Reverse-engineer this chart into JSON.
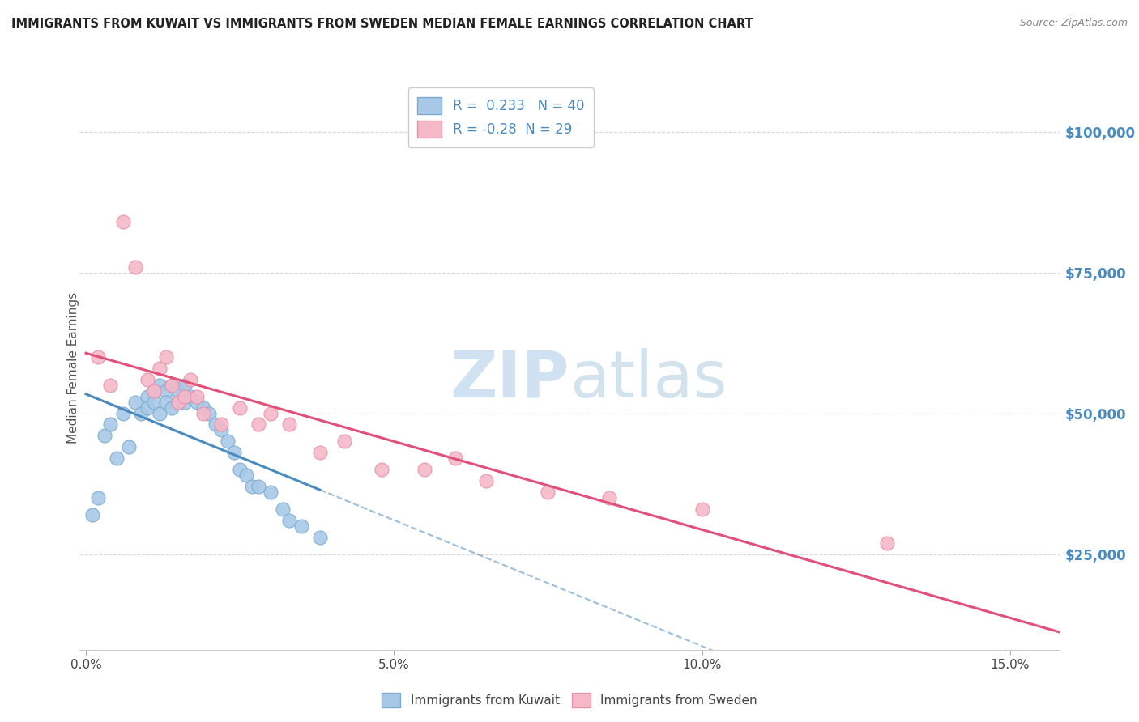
{
  "title": "IMMIGRANTS FROM KUWAIT VS IMMIGRANTS FROM SWEDEN MEDIAN FEMALE EARNINGS CORRELATION CHART",
  "source": "Source: ZipAtlas.com",
  "ylabel": "Median Female Earnings",
  "xlabel_ticks": [
    "0.0%",
    "5.0%",
    "10.0%",
    "15.0%"
  ],
  "xlabel_vals": [
    0.0,
    0.05,
    0.1,
    0.15
  ],
  "ytick_labels": [
    "$25,000",
    "$50,000",
    "$75,000",
    "$100,000"
  ],
  "ytick_vals": [
    25000,
    50000,
    75000,
    100000
  ],
  "xlim": [
    -0.001,
    0.158
  ],
  "ylim": [
    8000,
    108000
  ],
  "kuwait_color": "#a8c8e8",
  "kuwait_edge_color": "#7aaccc",
  "sweden_color": "#f5b8c8",
  "sweden_edge_color": "#e890a8",
  "kuwait_line_color": "#4a8bbf",
  "sweden_line_color": "#e0507a",
  "kuwait_R": 0.233,
  "kuwait_N": 40,
  "sweden_R": -0.28,
  "sweden_N": 29,
  "grid_color": "#d8d8d8",
  "background_color": "#ffffff",
  "kuwait_x": [
    0.001,
    0.002,
    0.003,
    0.004,
    0.005,
    0.006,
    0.007,
    0.008,
    0.009,
    0.01,
    0.01,
    0.011,
    0.011,
    0.012,
    0.012,
    0.013,
    0.013,
    0.014,
    0.014,
    0.015,
    0.015,
    0.016,
    0.016,
    0.017,
    0.018,
    0.019,
    0.02,
    0.021,
    0.022,
    0.023,
    0.024,
    0.025,
    0.026,
    0.027,
    0.028,
    0.03,
    0.032,
    0.033,
    0.035,
    0.038
  ],
  "kuwait_y": [
    32000,
    35000,
    46000,
    48000,
    42000,
    50000,
    44000,
    52000,
    50000,
    53000,
    51000,
    54000,
    52000,
    55000,
    50000,
    54000,
    52000,
    55000,
    51000,
    54000,
    52000,
    55000,
    52000,
    53000,
    52000,
    51000,
    50000,
    48000,
    47000,
    45000,
    43000,
    40000,
    39000,
    37000,
    37000,
    36000,
    33000,
    31000,
    30000,
    28000
  ],
  "sweden_x": [
    0.002,
    0.004,
    0.006,
    0.008,
    0.01,
    0.011,
    0.012,
    0.013,
    0.014,
    0.015,
    0.016,
    0.017,
    0.018,
    0.019,
    0.022,
    0.025,
    0.028,
    0.03,
    0.033,
    0.038,
    0.042,
    0.048,
    0.055,
    0.06,
    0.065,
    0.075,
    0.085,
    0.1,
    0.13
  ],
  "sweden_y": [
    60000,
    55000,
    84000,
    76000,
    56000,
    54000,
    58000,
    60000,
    55000,
    52000,
    53000,
    56000,
    53000,
    50000,
    48000,
    51000,
    48000,
    50000,
    48000,
    43000,
    45000,
    40000,
    40000,
    42000,
    38000,
    36000,
    35000,
    33000,
    27000
  ]
}
